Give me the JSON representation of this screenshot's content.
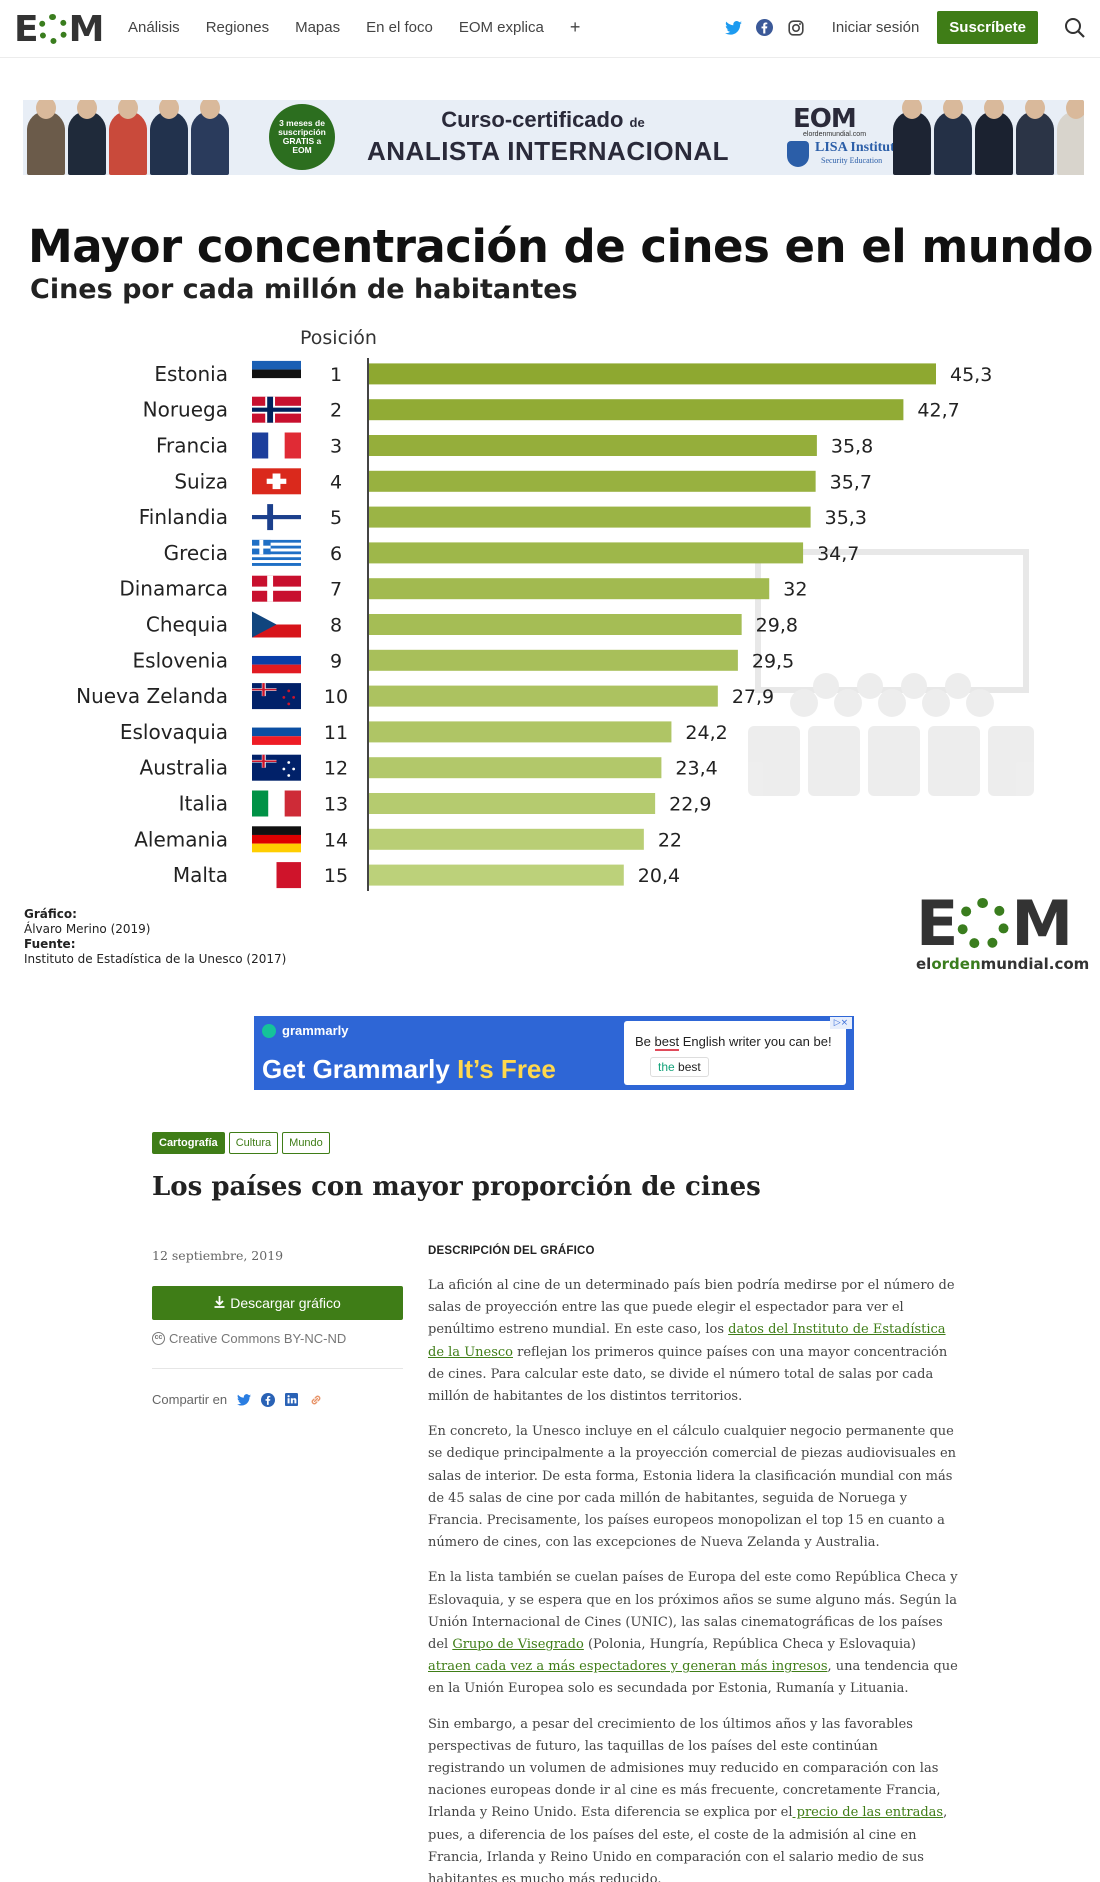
{
  "nav": {
    "logo": "EOM",
    "links": [
      "Análisis",
      "Regiones",
      "Mapas",
      "En el foco",
      "EOM explica",
      "+"
    ],
    "login": "Iniciar sesión",
    "subscribe": "Suscríbete",
    "icons": [
      "twitter-icon",
      "facebook-icon",
      "instagram-icon",
      "search-icon"
    ]
  },
  "banner": {
    "badge": "3 meses de suscripción GRATIS a EOM",
    "title_line1": "Curso-certificado",
    "title_line1_small": "de",
    "title_line2": "ANALISTA INTERNACIONAL",
    "logo": "EOM",
    "logo_site": "elordenmundial.com",
    "lisa_title": "LISA Institute",
    "lisa_sub": "Security Education"
  },
  "chart": {
    "title": "Mayor concentración de cines en el mundo",
    "subtitle": "Cines por cada millón de habitantes",
    "position_header": "Posición",
    "credit_label": "Gráfico:",
    "credit_value": "Álvaro Merino (2019)",
    "source_label": "Fuente:",
    "source_value": "Instituto de Estadística de la Unesco (2017)",
    "brand": "E◯M",
    "brand_site_pre": "el",
    "brand_site_mid": "orden",
    "brand_site_post": "mundial.com",
    "colors": {
      "bar_dark": "#8ea830",
      "bar_light": "#bcd17a"
    }
  },
  "chart_data": {
    "type": "bar",
    "orientation": "horizontal",
    "title": "Mayor concentración de cines en el mundo",
    "subtitle": "Cines por cada millón de habitantes",
    "categories": [
      "Estonia",
      "Noruega",
      "Francia",
      "Suiza",
      "Finlandia",
      "Grecia",
      "Dinamarca",
      "Chequia",
      "Eslovenia",
      "Nueva Zelanda",
      "Eslovaquia",
      "Australia",
      "Italia",
      "Alemania",
      "Malta"
    ],
    "positions": [
      "1",
      "2",
      "3",
      "4",
      "5",
      "6",
      "7",
      "8",
      "9",
      "10",
      "11",
      "12",
      "13",
      "14",
      "15"
    ],
    "values": [
      45.3,
      42.7,
      35.8,
      35.7,
      35.3,
      34.7,
      32,
      29.8,
      29.5,
      27.9,
      24.2,
      23.4,
      22.9,
      22,
      20.4
    ],
    "value_labels": [
      "45,3",
      "42,7",
      "35,8",
      "35,7",
      "35,3",
      "34,7",
      "32",
      "29,8",
      "29,5",
      "27,9",
      "24,2",
      "23,4",
      "22,9",
      "22",
      "20,4"
    ],
    "flags": [
      "estonia-flag",
      "norway-flag",
      "france-flag",
      "switzerland-flag",
      "finland-flag",
      "greece-flag",
      "denmark-flag",
      "czechia-flag",
      "slovenia-flag",
      "new-zealand-flag",
      "slovakia-flag",
      "australia-flag",
      "italy-flag",
      "germany-flag",
      "malta-flag"
    ],
    "xlim": [
      0,
      45.3
    ]
  },
  "ad": {
    "brand": "grammarly",
    "headline_pre": "Get Grammarly",
    "headline_post": "It’s Free",
    "box_pre": "Be ",
    "box_highlight": "best",
    "box_post": " English writer you can be!",
    "chip_pre": "the",
    "chip_post": " best",
    "ad_marker": "▷×"
  },
  "article": {
    "tags": [
      "Cartografía",
      "Cultura",
      "Mundo"
    ],
    "title": "Los países con mayor proporción de cines",
    "date": "12 septiembre, 2019",
    "download": "Descargar gráfico",
    "license": "Creative Commons BY-NC-ND",
    "share": "Compartir en",
    "desc_head": "DESCRIPCIÓN DEL GRÁFICO",
    "p1a": "La afición al cine de un determinado país bien podría medirse por el número de salas de proyección entre las que puede elegir el espectador para ver el penúltimo estreno mundial. En este caso, los ",
    "p1link": "datos del Instituto de Estadística de la Unesco",
    "p1b": " reflejan los primeros quince países con una mayor concentración de cines. Para calcular este dato, se divide el número total de salas por cada millón de habitantes de los distintos territorios.",
    "p2": "En concreto, la Unesco incluye en el cálculo cualquier negocio permanente que se dedique principalmente a la proyección comercial de piezas audiovisuales en salas de interior. De esta forma, Estonia lidera la clasificación mundial con más de 45 salas de cine por cada millón de habitantes, seguida de Noruega y Francia. Precisamente, los países europeos monopolizan el top 15 en cuanto a número de cines, con las excepciones de Nueva Zelanda y Australia.",
    "p3a": "En la lista también se cuelan países de Europa del este como República Checa y Eslovaquia, y se espera que en los próximos años se sume alguno más. Según la Unión Internacional de Cines (UNIC), las salas cinematográficas de los países del ",
    "p3link1": "Grupo de Visegrado",
    "p3b": " (Polonia, Hungría, República Checa y Eslovaquia)",
    "p3link2": " atraen cada vez a más espectadores y generan más ingresos",
    "p3c": ", una tendencia que en la Unión Europea solo es secundada por Estonia, Rumanía y Lituania.",
    "p4a": "Sin embargo, a pesar del crecimiento de los últimos años y las favorables perspectivas de futuro, las taquillas de los países del este continúan registrando un volumen de admisiones muy reducido en comparación con las naciones europeas donde ir al cine es más frecuente, concretamente Francia, Irlanda y Reino Unido. Esta diferencia se explica por el",
    "p4link": " precio de las entradas",
    "p4b": ", pues, a diferencia de los países del este, el coste de la admisión al cine en Francia, Irlanda y Reino Unido en comparación con el salario medio de sus habitantes es mucho más reducido."
  }
}
